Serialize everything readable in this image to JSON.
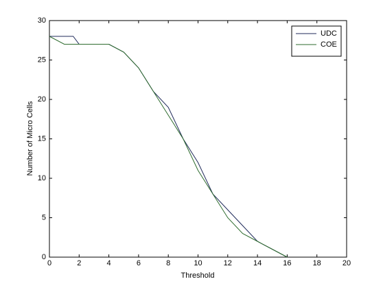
{
  "chart_data": {
    "type": "line",
    "xlabel": "Threshold",
    "ylabel": "Number of Micro Cells",
    "xlim": [
      0,
      20
    ],
    "ylim": [
      0,
      30
    ],
    "xticks": [
      0,
      2,
      4,
      6,
      8,
      10,
      12,
      14,
      16,
      18,
      20
    ],
    "yticks": [
      0,
      5,
      10,
      15,
      20,
      25,
      30
    ],
    "legend": "upper-right",
    "series": [
      {
        "name": "UDC",
        "color": "#1f2a5a",
        "x": [
          0,
          1.6,
          2,
          4,
          5,
          6,
          7,
          8,
          9,
          10,
          11,
          12,
          13,
          14,
          15,
          16
        ],
        "values": [
          28,
          28,
          27,
          27,
          26,
          24,
          21,
          19,
          15,
          12,
          8,
          6,
          4,
          2,
          1,
          0
        ]
      },
      {
        "name": "COE",
        "color": "#2e6b2e",
        "x": [
          0,
          1,
          2,
          4,
          5,
          6,
          7,
          8,
          9,
          10,
          11,
          12,
          13,
          14,
          15,
          16
        ],
        "values": [
          28,
          27,
          27,
          27,
          26,
          24,
          21,
          18,
          15,
          11,
          8,
          5,
          3,
          2,
          1,
          0
        ]
      }
    ]
  }
}
